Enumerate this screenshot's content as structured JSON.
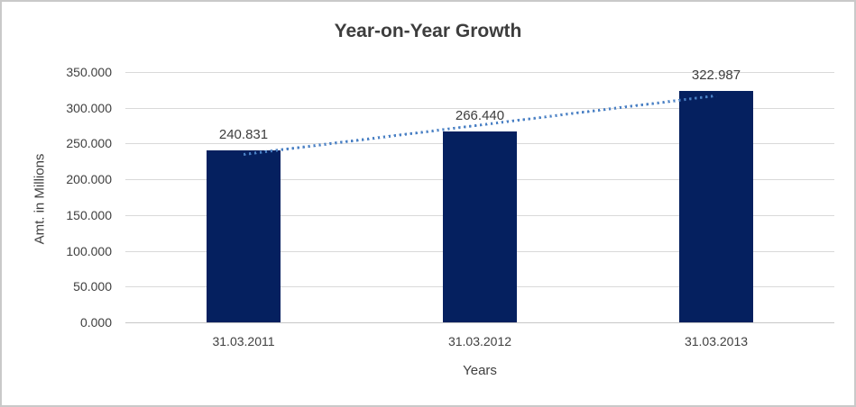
{
  "chart_data": {
    "type": "bar",
    "title": "Year-on-Year Growth",
    "xlabel": "Years",
    "ylabel": "Amt. in Millions",
    "categories": [
      "31.03.2011",
      "31.03.2012",
      "31.03.2013"
    ],
    "values": [
      240.831,
      266.44,
      322.987
    ],
    "data_labels": [
      "240.831",
      "266.440",
      "322.987"
    ],
    "ylim": [
      0,
      350
    ],
    "ytick_step": 50,
    "ytick_labels": [
      "0.000",
      "50.000",
      "100.000",
      "150.000",
      "200.000",
      "250.000",
      "300.000",
      "350.000"
    ],
    "grid": true,
    "legend_position": "none",
    "trendline": {
      "type": "linear",
      "style": "dotted"
    }
  },
  "colors": {
    "bar": "#05205f",
    "trendline": "#4a80c4",
    "gridline": "#d9d9d9",
    "axis_line": "#c6c6c6",
    "title_text": "#3d3d3d",
    "tick_text": "#404040",
    "canvas_border": "#c9c9c9"
  }
}
